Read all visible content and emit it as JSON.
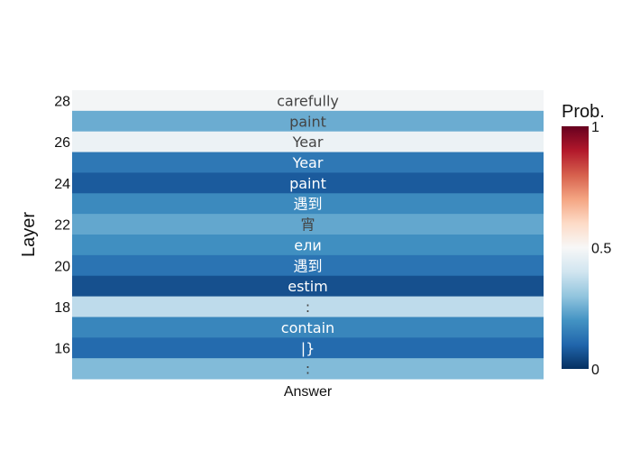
{
  "chart_data": {
    "type": "heatmap",
    "x_categories": [
      "Answer"
    ],
    "y_categories": [
      15,
      16,
      17,
      18,
      19,
      20,
      21,
      22,
      23,
      24,
      25,
      26,
      27,
      28
    ],
    "ylabel": "Layer",
    "y_tick_labels": [
      "28",
      "26",
      "24",
      "22",
      "20",
      "18",
      "16"
    ],
    "colorbar": {
      "title": "Prob.",
      "range": [
        0,
        1
      ],
      "tick_labels": [
        "1",
        "0.5",
        "0"
      ],
      "colorscale": "RdBu"
    },
    "cells": [
      {
        "layer": 28,
        "token": "carefully",
        "prob": 0.49
      },
      {
        "layer": 27,
        "token": "paint",
        "prob": 0.25
      },
      {
        "layer": 26,
        "token": "Year",
        "prob": 0.47
      },
      {
        "layer": 25,
        "token": "Year",
        "prob": 0.14
      },
      {
        "layer": 24,
        "token": "paint",
        "prob": 0.08
      },
      {
        "layer": 23,
        "token": "遇到",
        "prob": 0.18
      },
      {
        "layer": 22,
        "token": "宵",
        "prob": 0.24
      },
      {
        "layer": 21,
        "token": "ели",
        "prob": 0.19
      },
      {
        "layer": 20,
        "token": "遇到",
        "prob": 0.13
      },
      {
        "layer": 19,
        "token": "estim",
        "prob": 0.06
      },
      {
        "layer": 18,
        "token": ":",
        "prob": 0.37
      },
      {
        "layer": 17,
        "token": "contain",
        "prob": 0.17
      },
      {
        "layer": 16,
        "token": "|}",
        "prob": 0.11
      },
      {
        "layer": 15,
        "token": ":",
        "prob": 0.28
      }
    ]
  }
}
